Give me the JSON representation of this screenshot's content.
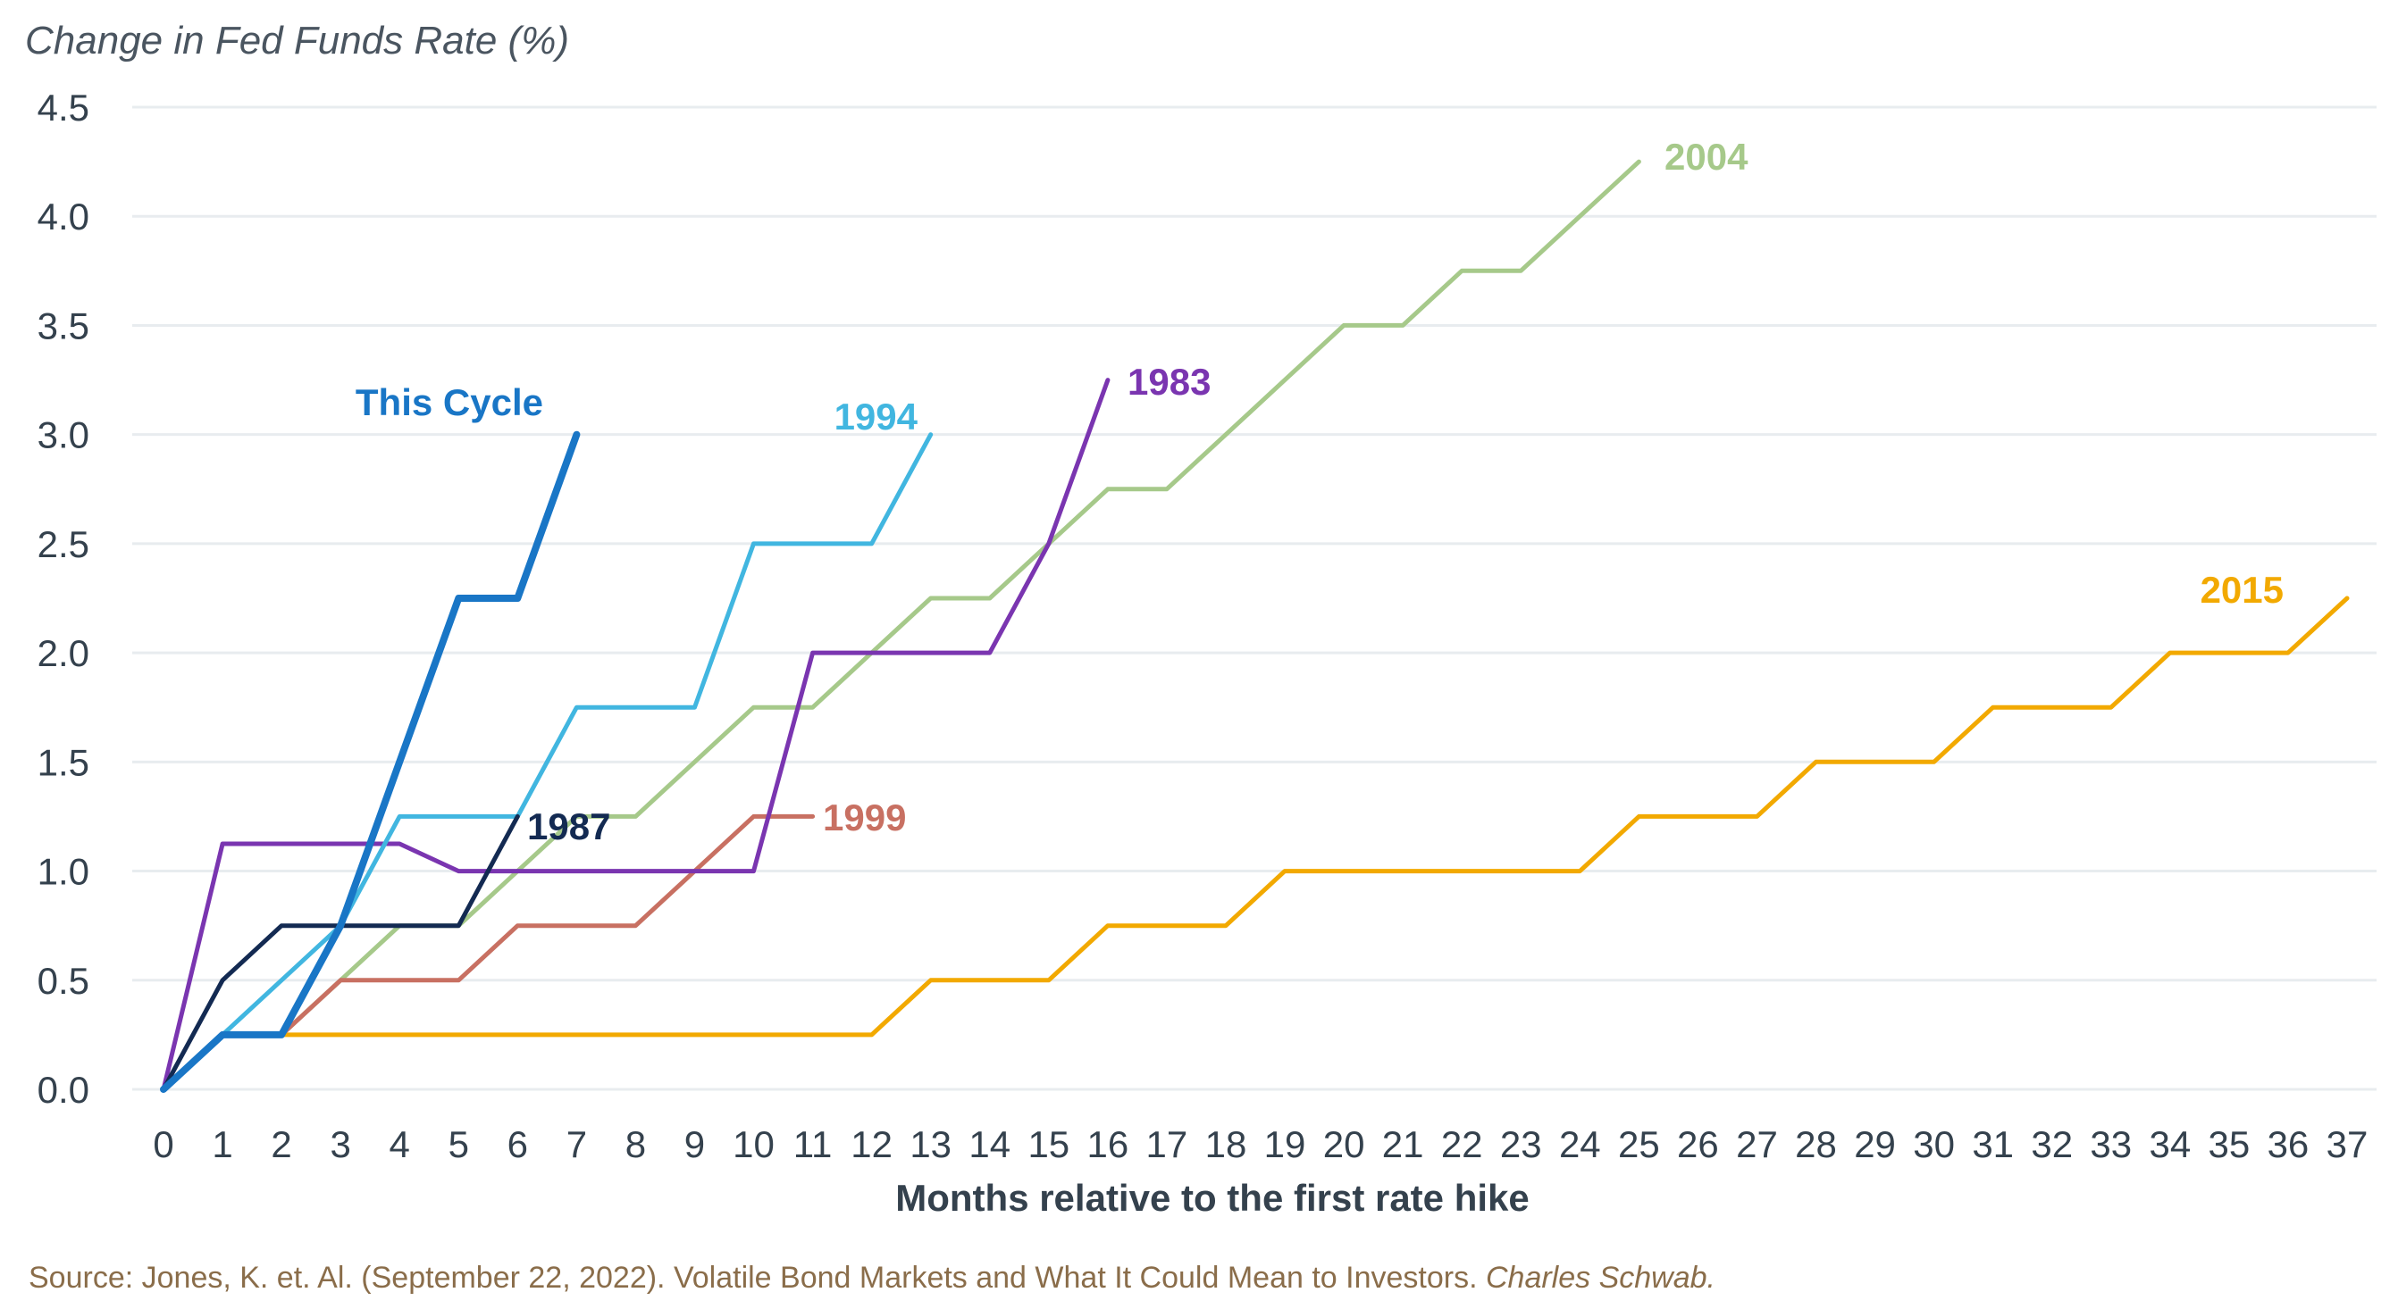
{
  "chart_data": {
    "type": "line",
    "ylabel": "Change in Fed Funds Rate (%)",
    "xlabel": "Months relative to the first rate hike",
    "xlim": [
      0,
      37
    ],
    "ylim": [
      0,
      4.5
    ],
    "y_ticks": [
      "0.0",
      "0.5",
      "1.0",
      "1.5",
      "2.0",
      "2.5",
      "3.0",
      "3.5",
      "4.0",
      "4.5"
    ],
    "x_ticks": [
      "0",
      "1",
      "2",
      "3",
      "4",
      "5",
      "6",
      "7",
      "8",
      "9",
      "10",
      "11",
      "12",
      "13",
      "14",
      "15",
      "16",
      "17",
      "18",
      "19",
      "20",
      "21",
      "22",
      "23",
      "24",
      "25",
      "26",
      "27",
      "28",
      "29",
      "30",
      "31",
      "32",
      "33",
      "34",
      "35",
      "36",
      "37"
    ],
    "grid": "horizontal",
    "series": [
      {
        "name": "2015",
        "color": "#f2a900",
        "x": [
          0,
          1,
          2,
          3,
          4,
          5,
          6,
          7,
          8,
          9,
          10,
          11,
          12,
          13,
          14,
          15,
          16,
          17,
          18,
          19,
          20,
          21,
          22,
          23,
          24,
          25,
          26,
          27,
          28,
          29,
          30,
          31,
          32,
          33,
          34,
          35,
          36,
          37
        ],
        "y": [
          0,
          0.25,
          0.25,
          0.25,
          0.25,
          0.25,
          0.25,
          0.25,
          0.25,
          0.25,
          0.25,
          0.25,
          0.25,
          0.5,
          0.5,
          0.5,
          0.75,
          0.75,
          0.75,
          1.0,
          1.0,
          1.0,
          1.0,
          1.0,
          1.0,
          1.25,
          1.25,
          1.25,
          1.5,
          1.5,
          1.5,
          1.75,
          1.75,
          1.75,
          2.0,
          2.0,
          2.0,
          2.25
        ]
      },
      {
        "name": "2004",
        "color": "#a6c98a",
        "x": [
          0,
          1,
          2,
          3,
          4,
          5,
          6,
          7,
          8,
          9,
          10,
          11,
          12,
          13,
          14,
          15,
          16,
          17,
          18,
          19,
          20,
          21,
          22,
          23,
          24,
          25
        ],
        "y": [
          0,
          0.25,
          0.25,
          0.5,
          0.75,
          0.75,
          1.0,
          1.25,
          1.25,
          1.5,
          1.75,
          1.75,
          2.0,
          2.25,
          2.25,
          2.5,
          2.75,
          2.75,
          3.0,
          3.25,
          3.5,
          3.5,
          3.75,
          3.75,
          4.0,
          4.25
        ]
      },
      {
        "name": "1999",
        "color": "#c87062",
        "x": [
          0,
          1,
          2,
          3,
          4,
          5,
          6,
          7,
          8,
          9,
          10,
          11
        ],
        "y": [
          0,
          0.25,
          0.25,
          0.5,
          0.5,
          0.5,
          0.75,
          0.75,
          0.75,
          1.0,
          1.25,
          1.25
        ]
      },
      {
        "name": "1983",
        "color": "#7a35b0",
        "x": [
          0,
          1,
          2,
          3,
          4,
          5,
          6,
          7,
          8,
          9,
          10,
          11,
          12,
          13,
          14,
          15,
          16
        ],
        "y": [
          0,
          1.125,
          1.125,
          1.125,
          1.125,
          1.0,
          1.0,
          1.0,
          1.0,
          1.0,
          1.0,
          2.0,
          2.0,
          2.0,
          2.0,
          2.5,
          3.25
        ]
      },
      {
        "name": "1994",
        "color": "#41b6e0",
        "x": [
          0,
          1,
          2,
          3,
          4,
          5,
          6,
          7,
          8,
          9,
          10,
          11,
          12,
          13
        ],
        "y": [
          0,
          0.25,
          0.5,
          0.75,
          1.25,
          1.25,
          1.25,
          1.75,
          1.75,
          1.75,
          2.5,
          2.5,
          2.5,
          3.0
        ]
      },
      {
        "name": "1987",
        "color": "#132a52",
        "x": [
          0,
          1,
          2,
          3,
          4,
          5,
          6
        ],
        "y": [
          0,
          0.5,
          0.75,
          0.75,
          0.75,
          0.75,
          1.25
        ]
      },
      {
        "name": "This Cycle",
        "color": "#1976c6",
        "x": [
          0,
          1,
          2,
          3,
          4,
          5,
          6,
          7
        ],
        "y": [
          0,
          0.25,
          0.25,
          0.75,
          1.5,
          2.25,
          2.25,
          3.0
        ]
      }
    ]
  },
  "source": {
    "text": "Source: Jones, K. et. Al. (September 22, 2022). Volatile Bond Markets and What It Could Mean to Investors. ",
    "publisher": "Charles Schwab."
  }
}
